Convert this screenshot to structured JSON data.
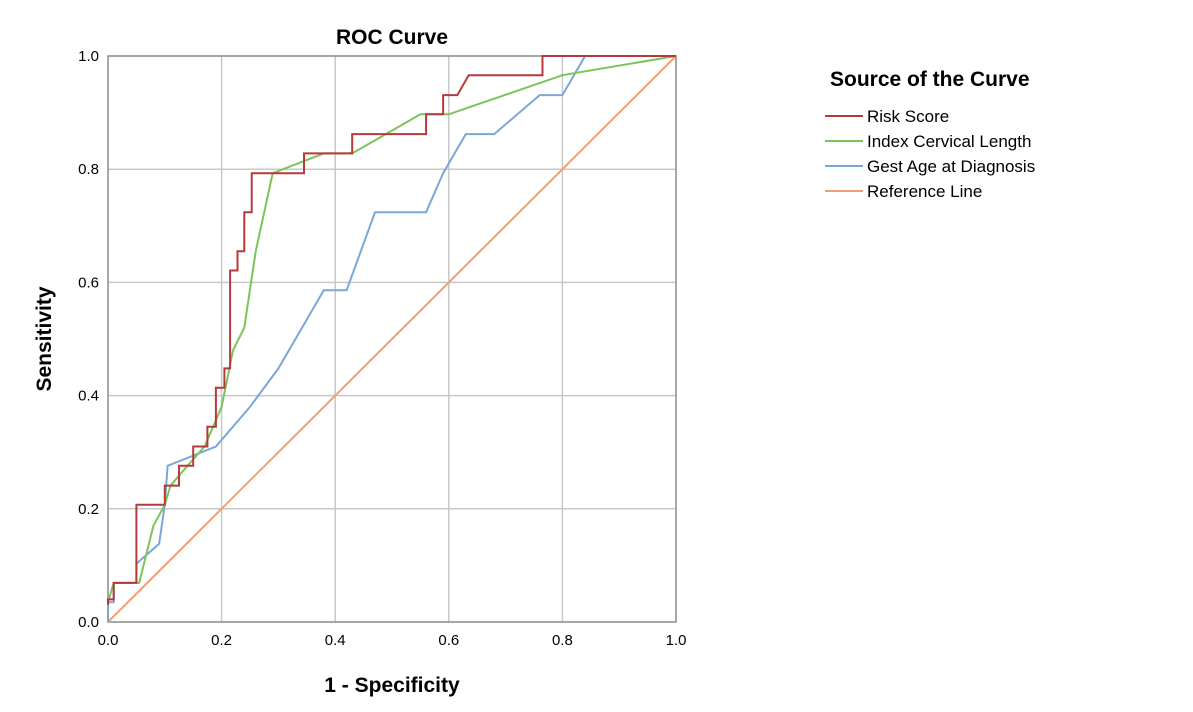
{
  "chart_data": {
    "type": "line",
    "title": "ROC Curve",
    "xlabel": "1 - Specificity",
    "ylabel": "Sensitivity",
    "xlim": [
      0,
      1
    ],
    "ylim": [
      0,
      1
    ],
    "x_ticks": [
      "0.0",
      "0.2",
      "0.4",
      "0.6",
      "0.8",
      "1.0"
    ],
    "y_ticks": [
      "0.0",
      "0.2",
      "0.4",
      "0.6",
      "0.8",
      "1.0"
    ],
    "grid": true,
    "legend_title": "Source of the Curve",
    "legend_position": "right",
    "series": [
      {
        "name": "Risk Score",
        "color": "#b73a3a",
        "points": [
          [
            0,
            0.03
          ],
          [
            0,
            0.04
          ],
          [
            0.01,
            0.04
          ],
          [
            0.01,
            0.069
          ],
          [
            0.05,
            0.069
          ],
          [
            0.05,
            0.207
          ],
          [
            0.1,
            0.207
          ],
          [
            0.1,
            0.241
          ],
          [
            0.125,
            0.241
          ],
          [
            0.125,
            0.276
          ],
          [
            0.15,
            0.276
          ],
          [
            0.15,
            0.31
          ],
          [
            0.175,
            0.31
          ],
          [
            0.175,
            0.345
          ],
          [
            0.19,
            0.345
          ],
          [
            0.19,
            0.414
          ],
          [
            0.205,
            0.414
          ],
          [
            0.205,
            0.448
          ],
          [
            0.215,
            0.448
          ],
          [
            0.215,
            0.621
          ],
          [
            0.228,
            0.621
          ],
          [
            0.228,
            0.655
          ],
          [
            0.24,
            0.655
          ],
          [
            0.24,
            0.724
          ],
          [
            0.253,
            0.724
          ],
          [
            0.253,
            0.793
          ],
          [
            0.345,
            0.793
          ],
          [
            0.345,
            0.828
          ],
          [
            0.43,
            0.828
          ],
          [
            0.43,
            0.862
          ],
          [
            0.56,
            0.862
          ],
          [
            0.56,
            0.897
          ],
          [
            0.59,
            0.897
          ],
          [
            0.59,
            0.931
          ],
          [
            0.615,
            0.931
          ],
          [
            0.635,
            0.966
          ],
          [
            0.765,
            0.966
          ],
          [
            0.765,
            1.0
          ],
          [
            1.0,
            1.0
          ]
        ]
      },
      {
        "name": "Index Cervical Length",
        "color": "#7cc45a",
        "points": [
          [
            0,
            0.035
          ],
          [
            0.01,
            0.069
          ],
          [
            0.055,
            0.069
          ],
          [
            0.08,
            0.17
          ],
          [
            0.1,
            0.207
          ],
          [
            0.11,
            0.241
          ],
          [
            0.14,
            0.276
          ],
          [
            0.17,
            0.31
          ],
          [
            0.2,
            0.38
          ],
          [
            0.22,
            0.48
          ],
          [
            0.24,
            0.52
          ],
          [
            0.26,
            0.655
          ],
          [
            0.29,
            0.793
          ],
          [
            0.38,
            0.828
          ],
          [
            0.43,
            0.828
          ],
          [
            0.55,
            0.897
          ],
          [
            0.6,
            0.897
          ],
          [
            0.8,
            0.966
          ],
          [
            1.0,
            1.0
          ]
        ]
      },
      {
        "name": "Gest Age at Diagnosis",
        "color": "#7ba7d7",
        "points": [
          [
            0,
            0.0
          ],
          [
            0,
            0.035
          ],
          [
            0.01,
            0.035
          ],
          [
            0.01,
            0.069
          ],
          [
            0.05,
            0.069
          ],
          [
            0.05,
            0.103
          ],
          [
            0.09,
            0.138
          ],
          [
            0.1,
            0.207
          ],
          [
            0.105,
            0.276
          ],
          [
            0.19,
            0.31
          ],
          [
            0.25,
            0.38
          ],
          [
            0.3,
            0.448
          ],
          [
            0.38,
            0.586
          ],
          [
            0.42,
            0.586
          ],
          [
            0.47,
            0.724
          ],
          [
            0.56,
            0.724
          ],
          [
            0.59,
            0.793
          ],
          [
            0.63,
            0.862
          ],
          [
            0.68,
            0.862
          ],
          [
            0.76,
            0.931
          ],
          [
            0.8,
            0.931
          ],
          [
            0.84,
            1.0
          ],
          [
            1.0,
            1.0
          ]
        ]
      },
      {
        "name": "Reference Line",
        "color": "#f0a070",
        "points": [
          [
            0,
            0
          ],
          [
            1,
            1
          ]
        ]
      }
    ]
  }
}
